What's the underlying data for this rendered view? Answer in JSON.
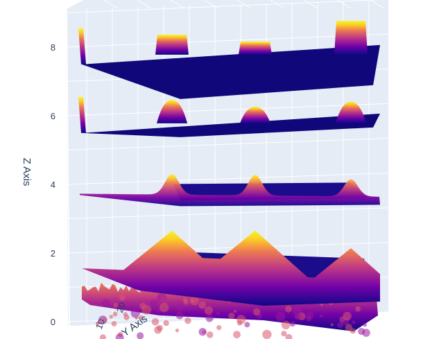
{
  "chart_data": {
    "type": "surface",
    "subtype": "3d-stacked-surfaces",
    "title": "",
    "xlabel": "",
    "ylabel": "Y Axis",
    "zlabel": "Z Axis",
    "z_ticks": [
      0,
      2,
      4,
      6,
      8
    ],
    "y_ticks": [
      10,
      20
    ],
    "colorscale": [
      "#0d0887",
      "#46039f",
      "#7201a8",
      "#9c179e",
      "#bd3786",
      "#d8576b",
      "#ed7953",
      "#fb9f3a",
      "#fdca26",
      "#f0f921"
    ],
    "background_color": "#e5ecf6",
    "grid_color": "#ffffff",
    "surfaces": [
      {
        "level": 0.3,
        "style": "noisy",
        "peaks": [
          [
            0.25,
            0.55
          ],
          [
            0.5,
            0.4
          ],
          [
            0.85,
            0.45
          ]
        ]
      },
      {
        "level": 2.0,
        "style": "triangular",
        "peaks": [
          [
            0.25,
            1.2
          ],
          [
            0.5,
            1.3
          ],
          [
            0.85,
            0.9
          ]
        ]
      },
      {
        "level": 3.85,
        "style": "gaussian",
        "peaks": [
          [
            0.25,
            0.6
          ],
          [
            0.5,
            0.6
          ],
          [
            0.85,
            0.5
          ]
        ]
      },
      {
        "level": 5.7,
        "style": "dome",
        "peaks": [
          [
            0.25,
            0.6
          ],
          [
            0.5,
            0.4
          ],
          [
            0.85,
            0.55
          ]
        ]
      },
      {
        "level": 7.7,
        "style": "plateau",
        "peaks": [
          [
            0.25,
            0.5
          ],
          [
            0.5,
            0.3
          ],
          [
            0.85,
            0.9
          ]
        ]
      }
    ]
  }
}
